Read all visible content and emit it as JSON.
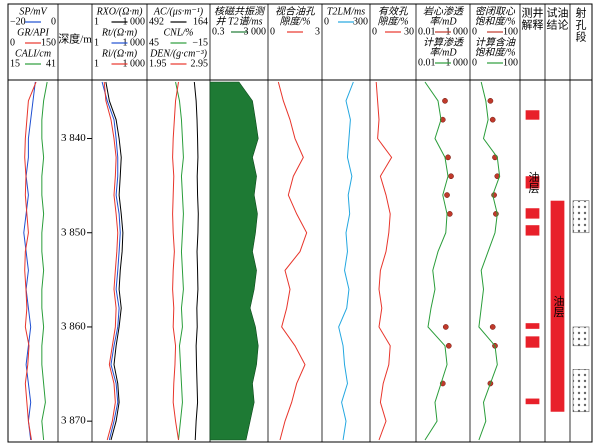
{
  "chart_data": {
    "type": "well-log",
    "depth_label": "深度/m",
    "ylim": [
      3834,
      3872
    ],
    "yticks": [
      {
        "value": 3840,
        "label": "3 840"
      },
      {
        "value": 3850,
        "label": "3 850"
      },
      {
        "value": 3860,
        "label": "3 860"
      },
      {
        "value": 3870,
        "label": "3 870"
      }
    ],
    "depth": [
      3834,
      3836,
      3838,
      3840,
      3842,
      3844,
      3846,
      3848,
      3850,
      3852,
      3854,
      3856,
      3858,
      3860,
      3862,
      3864,
      3866,
      3868,
      3870,
      3872
    ],
    "tracks": [
      {
        "curves": [
          {
            "name": [
              "SP/mV"
            ],
            "xlim": [
              {
                "value": -20,
                "label": "−20"
              },
              0
            ],
            "color": "#1f4fd1",
            "style": "line",
            "values": [
              -9,
              -10,
              -11,
              -12,
              -12,
              -13,
              -12,
              -13,
              -14,
              -13,
              -12,
              -13,
              -12,
              -11,
              -12,
              -13,
              -12,
              -11,
              -12,
              -11
            ]
          },
          {
            "name": [
              "GR/API"
            ],
            "xlim": [
              0,
              150
            ],
            "color": "#e8352b",
            "style": "line",
            "values": [
              85,
              60,
              55,
              50,
              48,
              52,
              50,
              55,
              60,
              50,
              48,
              52,
              55,
              50,
              62,
              58,
              50,
              55,
              60,
              70
            ]
          },
          {
            "name": [
              "CALI/cm"
            ],
            "xlim": [
              15,
              41
            ],
            "color": "#2a9d3a",
            "style": "line",
            "values": [
              36,
              34,
              33,
              33,
              34,
              33,
              33,
              34,
              33,
              33,
              34,
              33,
              33,
              34,
              33,
              33,
              34,
              35,
              33,
              34
            ]
          }
        ]
      },
      {
        "curves": [
          {
            "name": [
              "RXO/(Ω·m)"
            ],
            "xlim": [
              1,
              {
                "value": 1000,
                "label": "1 000"
              }
            ],
            "log": true,
            "color": "#000000",
            "style": "line",
            "values": [
              5,
              8,
              20,
              30,
              40,
              35,
              30,
              40,
              50,
              45,
              35,
              30,
              40,
              30,
              20,
              15,
              25,
              30,
              20,
              10
            ]
          },
          {
            "name": [
              "Rt/(Ω·m)"
            ],
            "xlim": [
              1,
              {
                "value": 1000,
                "label": "1 000"
              }
            ],
            "log": true,
            "color": "#1f4fd1",
            "style": "line",
            "values": [
              3,
              6,
              15,
              20,
              25,
              25,
              20,
              30,
              35,
              30,
              25,
              20,
              30,
              25,
              15,
              10,
              20,
              25,
              15,
              8
            ]
          },
          {
            "name": [
              "Ri/(Ω·m)"
            ],
            "xlim": [
              1,
              {
                "value": 1000,
                "label": "1 000"
              }
            ],
            "log": true,
            "color": "#e8352b",
            "style": "line",
            "values": [
              4,
              5,
              10,
              15,
              20,
              18,
              15,
              20,
              25,
              22,
              18,
              15,
              20,
              18,
              12,
              8,
              15,
              18,
              12,
              6
            ]
          }
        ]
      },
      {
        "curves": [
          {
            "name": [
              "AC/(μs·m⁻¹)"
            ],
            "xlim": [
              492,
              164
            ],
            "color": "#000000",
            "style": "line",
            "values": [
              240,
              230,
              225,
              222,
              220,
              224,
              222,
              218,
              220,
              225,
              222,
              220,
              226,
              224,
              230,
              228,
              225,
              222,
              230,
              235
            ]
          },
          {
            "name": [
              "CNL/%"
            ],
            "xlim": [
              45,
              {
                "value": -15,
                "label": "−15"
              }
            ],
            "color": "#2a9d3a",
            "style": "line",
            "values": [
              18,
              14,
              12,
              11,
              10,
              12,
              11,
              10,
              11,
              12,
              11,
              10,
              12,
              11,
              14,
              13,
              12,
              11,
              13,
              15
            ]
          },
          {
            "name": [
              "DEN/(g·cm⁻³)"
            ],
            "xlim": [
              1.95,
              2.95
            ],
            "color": "#e8352b",
            "style": "line",
            "values": [
              2.45,
              2.4,
              2.38,
              2.36,
              2.35,
              2.37,
              2.36,
              2.35,
              2.36,
              2.38,
              2.36,
              2.35,
              2.37,
              2.36,
              2.4,
              2.39,
              2.37,
              2.36,
              2.4,
              2.45
            ]
          }
        ]
      },
      {
        "curves": [
          {
            "name": [
              "核磁共振测",
              "井 T2谱/ms"
            ],
            "xlim": [
              0.3,
              {
                "value": 3000,
                "label": "3 000"
              }
            ],
            "log": true,
            "color": "#1e7a34",
            "style": "area",
            "values": [
              30,
              300,
              500,
              800,
              300,
              600,
              400,
              700,
              500,
              300,
              600,
              400,
              200,
              500,
              800,
              600,
              300,
              400,
              200,
              100
            ]
          }
        ]
      },
      {
        "curves": [
          {
            "name": [
              "视合油孔",
              "隙度/%"
            ],
            "xlim": [
              0,
              3
            ],
            "color": "#e8352b",
            "style": "line",
            "values": [
              0.5,
              0.8,
              1.2,
              1.5,
              2.0,
              1.4,
              1.1,
              1.6,
              2.2,
              1.8,
              0.9,
              1.2,
              1.0,
              0.7,
              1.5,
              2.1,
              1.6,
              1.3,
              0.9,
              0.6
            ]
          }
        ]
      },
      {
        "curves": [
          {
            "name": [
              "T2LM/ms"
            ],
            "xlim": [
              0,
              300
            ],
            "color": "#23a7e0",
            "style": "line",
            "values": [
              200,
              150,
              180,
              170,
              160,
              190,
              165,
              175,
              150,
              160,
              140,
              170,
              155,
              100,
              130,
              140,
              160,
              120,
              150,
              130
            ]
          }
        ]
      },
      {
        "curves": [
          {
            "name": [
              "有效孔",
              "隙度/%"
            ],
            "xlim": [
              0,
              30
            ],
            "color": "#e8352b",
            "style": "line",
            "values": [
              3,
              4,
              5,
              4,
              14,
              6,
              10,
              13,
              12,
              10,
              6,
              5,
              7,
              5,
              13,
              12,
              8,
              6,
              10,
              5
            ]
          }
        ]
      },
      {
        "curves": [
          {
            "name": [
              "岩心渗透",
              "率/mD"
            ],
            "xlim": [
              0.01,
              {
                "value": 1000,
                "label": "1 000"
              }
            ],
            "log": true,
            "color": "#c0392b",
            "style": "dots",
            "values": [
              null,
              5,
              3,
              null,
              10,
              20,
              8,
              15,
              null,
              null,
              null,
              null,
              null,
              6,
              12,
              null,
              3,
              null,
              null,
              null
            ]
          },
          {
            "name": [
              "计算渗透",
              "率/mD"
            ],
            "xlim": [
              0.01,
              {
                "value": 1000,
                "label": "1 000"
              }
            ],
            "log": true,
            "color": "#2a9d3a",
            "style": "line",
            "values": [
              0.05,
              1,
              2,
              0.5,
              5,
              10,
              3,
              8,
              6,
              1,
              0.3,
              0.5,
              0.2,
              0.1,
              5,
              8,
              2,
              0.5,
              0.8,
              0.05
            ]
          }
        ]
      },
      {
        "curves": [
          {
            "name": [
              "密闭取心",
              "饱和度/%"
            ],
            "xlim": [
              0,
              100
            ],
            "color": "#c0392b",
            "style": "dots",
            "values": [
              null,
              40,
              45,
              null,
              50,
              55,
              48,
              52,
              null,
              null,
              null,
              null,
              null,
              45,
              50,
              null,
              40,
              null,
              null,
              null
            ]
          },
          {
            "name": [
              "计算含油",
              "饱和度/%"
            ],
            "xlim": [
              0,
              100
            ],
            "color": "#2a9d3a",
            "style": "line",
            "values": [
              20,
              30,
              35,
              25,
              55,
              60,
              45,
              55,
              50,
              35,
              20,
              25,
              20,
              15,
              50,
              55,
              40,
              25,
              30,
              15
            ]
          }
        ]
      },
      {
        "name": [
          "测井",
          "解释"
        ],
        "style": "red",
        "label": "油层",
        "label_interval": 1,
        "intervals": [
          [
            3837,
            3838
          ],
          [
            3844,
            3845.3
          ],
          [
            3847.4,
            3848.5
          ],
          [
            3849.2,
            3850.3
          ],
          [
            3859.6,
            3860.2
          ],
          [
            3861,
            3862.2
          ],
          [
            3867.6,
            3868.2
          ]
        ]
      },
      {
        "name": [
          "试油",
          "结论"
        ],
        "style": "red",
        "label": "油层",
        "label_interval": 0,
        "intervals": [
          [
            3846.6,
            3869
          ]
        ]
      },
      {
        "name": [
          "射",
          "孔",
          "段"
        ],
        "style": "perf",
        "intervals": [
          [
            3846.6,
            3850
          ],
          [
            3860,
            3862
          ],
          [
            3864.5,
            3869
          ]
        ]
      }
    ]
  }
}
